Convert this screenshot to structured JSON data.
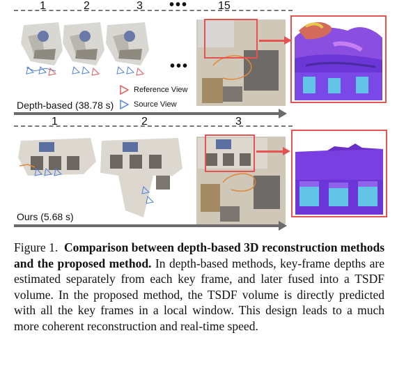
{
  "figure": {
    "top_panel": {
      "frame_numbers": [
        "1",
        "2",
        "3",
        "15"
      ],
      "ellipsis": "•••",
      "middle_ellipsis": "•••",
      "method_label": "Depth-based (38.78 s)",
      "legend": {
        "reference": "Reference View",
        "source": "Source View"
      }
    },
    "bottom_panel": {
      "frame_numbers": [
        "1",
        "2",
        "3"
      ],
      "method_label": "Ours (5.68 s)"
    },
    "colors": {
      "accent_red": "#e45252",
      "camera_blue": "#4d7fd6",
      "trajectory_orange": "#e0883a",
      "normal_purple": "#7a3fe0"
    }
  },
  "caption": {
    "prefix": "Figure 1.",
    "bold": "Comparison between depth-based 3D reconstruction methods and the proposed method.",
    "body": "In depth-based methods, key-frame depths are estimated separately from each key frame, and later fused into a TSDF volume. In the proposed method, the TSDF volume is directly predicted with all the key frames in a local window. This design leads to a much more coherent reconstruction and real-time speed."
  }
}
